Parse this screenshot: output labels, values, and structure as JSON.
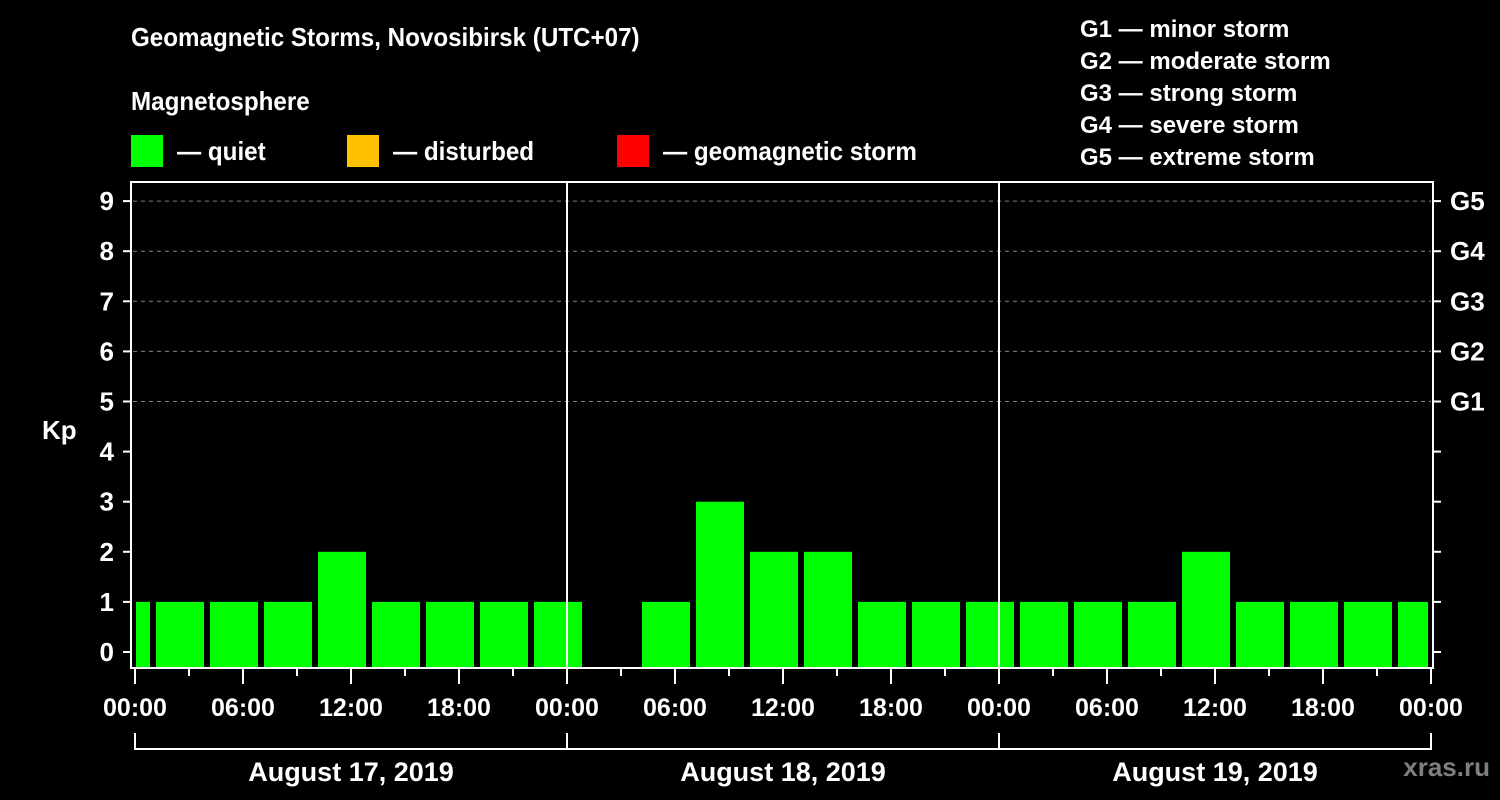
{
  "header": {
    "title": "Geomagnetic Storms, Novosibirsk (UTC+07)",
    "subtitle": "Magnetosphere"
  },
  "legend": [
    {
      "label": "— quiet",
      "color": "#00ff00"
    },
    {
      "label": "— disturbed",
      "color": "#ffc000"
    },
    {
      "label": "— geomagnetic storm",
      "color": "#ff0000"
    }
  ],
  "storm_scale": [
    "G1 — minor storm",
    "G2 — moderate storm",
    "G3 — strong storm",
    "G4 — severe storm",
    "G5 — extreme storm"
  ],
  "watermark": "xras.ru",
  "chart_data": {
    "type": "bar",
    "title": "Geomagnetic Storms, Novosibirsk (UTC+07)",
    "subtitle": "Magnetosphere",
    "xlabel": "",
    "ylabel": "Kp",
    "ylim": [
      0,
      9
    ],
    "yticks": [
      0,
      1,
      2,
      3,
      4,
      5,
      6,
      7,
      8,
      9
    ],
    "right_axis": [
      {
        "kp": 5,
        "label": "G1"
      },
      {
        "kp": 6,
        "label": "G2"
      },
      {
        "kp": 7,
        "label": "G3"
      },
      {
        "kp": 8,
        "label": "G4"
      },
      {
        "kp": 9,
        "label": "G5"
      }
    ],
    "grid": {
      "horizontal_dashed_at": [
        5,
        6,
        7,
        8,
        9
      ]
    },
    "days": [
      "August 17, 2019",
      "August 18, 2019",
      "August 19, 2019"
    ],
    "xtick_labels": [
      "00:00",
      "06:00",
      "12:00",
      "18:00",
      "00:00",
      "06:00",
      "12:00",
      "18:00",
      "00:00",
      "06:00",
      "12:00",
      "18:00",
      "00:00"
    ],
    "bar_color": "#00ff00",
    "bars": [
      {
        "start_h": 0,
        "end_h": 1,
        "kp": 1,
        "label": "Aug 17 00:00-01:00"
      },
      {
        "start_h": 1,
        "end_h": 4,
        "kp": 1,
        "label": "Aug 17 01:00-04:00"
      },
      {
        "start_h": 4,
        "end_h": 7,
        "kp": 1,
        "label": "Aug 17 04:00-07:00"
      },
      {
        "start_h": 7,
        "end_h": 10,
        "kp": 1,
        "label": "Aug 17 07:00-10:00"
      },
      {
        "start_h": 10,
        "end_h": 13,
        "kp": 2,
        "label": "Aug 17 10:00-13:00"
      },
      {
        "start_h": 13,
        "end_h": 16,
        "kp": 1,
        "label": "Aug 17 13:00-16:00"
      },
      {
        "start_h": 16,
        "end_h": 19,
        "kp": 1,
        "label": "Aug 17 16:00-19:00"
      },
      {
        "start_h": 19,
        "end_h": 22,
        "kp": 1,
        "label": "Aug 17 19:00-22:00"
      },
      {
        "start_h": 22,
        "end_h": 25,
        "kp": 1,
        "label": "Aug 17 22:00-01:00"
      },
      {
        "start_h": 28,
        "end_h": 31,
        "kp": 1,
        "label": "Aug 18 04:00-07:00"
      },
      {
        "start_h": 31,
        "end_h": 34,
        "kp": 3,
        "label": "Aug 18 07:00-10:00"
      },
      {
        "start_h": 34,
        "end_h": 37,
        "kp": 2,
        "label": "Aug 18 10:00-13:00"
      },
      {
        "start_h": 37,
        "end_h": 40,
        "kp": 2,
        "label": "Aug 18 13:00-16:00"
      },
      {
        "start_h": 40,
        "end_h": 43,
        "kp": 1,
        "label": "Aug 18 16:00-19:00"
      },
      {
        "start_h": 43,
        "end_h": 46,
        "kp": 1,
        "label": "Aug 18 19:00-22:00"
      },
      {
        "start_h": 46,
        "end_h": 49,
        "kp": 1,
        "label": "Aug 18 22:00-01:00"
      },
      {
        "start_h": 49,
        "end_h": 52,
        "kp": 1,
        "label": "Aug 19 01:00-04:00"
      },
      {
        "start_h": 52,
        "end_h": 55,
        "kp": 1,
        "label": "Aug 19 04:00-07:00"
      },
      {
        "start_h": 55,
        "end_h": 58,
        "kp": 1,
        "label": "Aug 19 07:00-10:00"
      },
      {
        "start_h": 58,
        "end_h": 61,
        "kp": 2,
        "label": "Aug 19 10:00-13:00"
      },
      {
        "start_h": 61,
        "end_h": 64,
        "kp": 1,
        "label": "Aug 19 13:00-16:00"
      },
      {
        "start_h": 64,
        "end_h": 67,
        "kp": 1,
        "label": "Aug 19 16:00-19:00"
      },
      {
        "start_h": 67,
        "end_h": 70,
        "kp": 1,
        "label": "Aug 19 19:00-22:00"
      },
      {
        "start_h": 70,
        "end_h": 72,
        "kp": 1,
        "label": "Aug 19 22:00-24:00"
      }
    ]
  }
}
